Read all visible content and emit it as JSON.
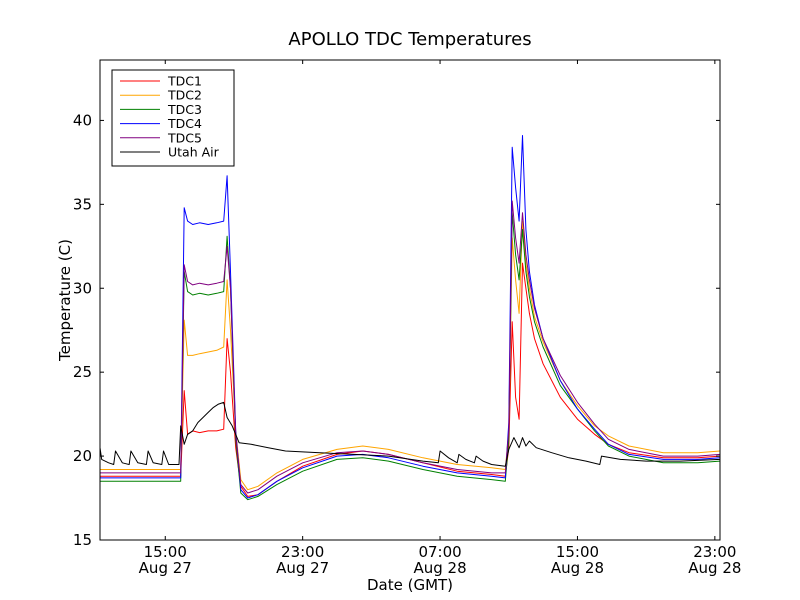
{
  "chart_data": {
    "type": "line",
    "title": "APOLLO TDC Temperatures",
    "xlabel": "Date (GMT)",
    "ylabel": "Temperature (C)",
    "ylim": [
      15,
      43.6
    ],
    "xlim": [
      11.2,
      47.3
    ],
    "x_units": "hours since Aug 27 00:00 GMT",
    "grid": false,
    "legend_position": "top-left",
    "yticks": [
      {
        "value": 15,
        "label": "15"
      },
      {
        "value": 20,
        "label": "20"
      },
      {
        "value": 25,
        "label": "25"
      },
      {
        "value": 30,
        "label": "30"
      },
      {
        "value": 35,
        "label": "35"
      },
      {
        "value": 40,
        "label": "40"
      }
    ],
    "xticks": [
      {
        "value": 15,
        "label1": "15:00",
        "label2": "Aug 27"
      },
      {
        "value": 23,
        "label1": "23:00",
        "label2": "Aug 27"
      },
      {
        "value": 31,
        "label1": "07:00",
        "label2": "Aug 28"
      },
      {
        "value": 39,
        "label1": "15:00",
        "label2": "Aug 28"
      },
      {
        "value": 47,
        "label1": "23:00",
        "label2": "Aug 28"
      }
    ],
    "series": [
      {
        "name": "TDC1",
        "color": "#ff0000",
        "x": [
          11.2,
          15.0,
          15.9,
          16.1,
          16.3,
          16.6,
          17.0,
          17.5,
          18.0,
          18.4,
          18.6,
          18.8,
          19.1,
          19.4,
          19.8,
          20.4,
          21.5,
          23.0,
          25.0,
          26.5,
          28.0,
          30.0,
          32.0,
          34.0,
          34.8,
          35.0,
          35.2,
          35.4,
          35.6,
          35.8,
          36.0,
          36.2,
          36.5,
          37.0,
          38.0,
          39.0,
          40.0,
          40.8,
          42.0,
          44.0,
          46.0,
          47.3
        ],
        "y": [
          18.8,
          18.8,
          18.8,
          23.9,
          21.3,
          21.5,
          21.4,
          21.5,
          21.5,
          21.6,
          27.0,
          25.0,
          20.5,
          18.2,
          17.6,
          17.7,
          18.5,
          19.4,
          20.1,
          20.3,
          20.1,
          19.6,
          19.1,
          18.9,
          18.8,
          20.5,
          28.0,
          23.5,
          22.2,
          31.5,
          30.0,
          28.5,
          27.0,
          25.5,
          23.5,
          22.2,
          21.3,
          20.7,
          20.2,
          19.9,
          19.9,
          20.0
        ]
      },
      {
        "name": "TDC2",
        "color": "#ffa500",
        "x": [
          11.2,
          15.0,
          15.9,
          16.1,
          16.3,
          16.6,
          17.0,
          17.5,
          18.0,
          18.4,
          18.6,
          18.8,
          19.1,
          19.4,
          19.8,
          20.4,
          21.5,
          23.0,
          25.0,
          26.5,
          28.0,
          30.0,
          32.0,
          34.0,
          34.8,
          35.0,
          35.2,
          35.4,
          35.6,
          35.8,
          36.0,
          36.2,
          36.5,
          37.0,
          38.0,
          39.0,
          40.0,
          40.8,
          42.0,
          44.0,
          46.0,
          47.3
        ],
        "y": [
          19.2,
          19.2,
          19.2,
          28.1,
          26.0,
          26.0,
          26.1,
          26.2,
          26.3,
          26.5,
          30.5,
          27.5,
          21.5,
          18.6,
          18.0,
          18.2,
          19.0,
          19.8,
          20.4,
          20.6,
          20.4,
          19.9,
          19.5,
          19.3,
          19.2,
          21.5,
          33.0,
          30.5,
          28.5,
          34.0,
          31.5,
          30.0,
          28.3,
          26.8,
          24.5,
          23.0,
          21.8,
          21.2,
          20.6,
          20.2,
          20.2,
          20.3
        ]
      },
      {
        "name": "TDC3",
        "color": "#008000",
        "x": [
          11.2,
          15.0,
          15.9,
          16.1,
          16.3,
          16.6,
          17.0,
          17.5,
          18.0,
          18.4,
          18.6,
          18.8,
          19.1,
          19.4,
          19.8,
          20.4,
          21.5,
          23.0,
          25.0,
          26.5,
          28.0,
          30.0,
          32.0,
          34.0,
          34.8,
          35.0,
          35.2,
          35.4,
          35.6,
          35.8,
          36.0,
          36.2,
          36.5,
          37.0,
          38.0,
          39.0,
          40.0,
          40.8,
          42.0,
          44.0,
          46.0,
          47.3
        ],
        "y": [
          18.5,
          18.5,
          18.5,
          31.0,
          29.8,
          29.6,
          29.7,
          29.6,
          29.7,
          29.8,
          33.1,
          30.0,
          21.0,
          17.8,
          17.4,
          17.6,
          18.3,
          19.1,
          19.8,
          19.9,
          19.7,
          19.2,
          18.8,
          18.6,
          18.5,
          21.0,
          34.5,
          32.0,
          30.5,
          33.5,
          31.0,
          29.5,
          28.0,
          26.5,
          24.2,
          22.8,
          21.5,
          20.6,
          20.0,
          19.6,
          19.6,
          19.7
        ]
      },
      {
        "name": "TDC4",
        "color": "#0000ff",
        "x": [
          11.2,
          15.0,
          15.9,
          16.1,
          16.3,
          16.6,
          17.0,
          17.5,
          18.0,
          18.4,
          18.6,
          18.8,
          19.1,
          19.4,
          19.8,
          20.4,
          21.5,
          23.0,
          25.0,
          26.5,
          28.0,
          30.0,
          32.0,
          34.0,
          34.8,
          35.0,
          35.2,
          35.4,
          35.6,
          35.8,
          36.0,
          36.2,
          36.5,
          37.0,
          38.0,
          39.0,
          40.0,
          40.8,
          42.0,
          44.0,
          46.0,
          47.3
        ],
        "y": [
          18.7,
          18.7,
          18.7,
          34.8,
          34.0,
          33.8,
          33.9,
          33.8,
          33.9,
          34.0,
          36.7,
          31.0,
          21.5,
          18.0,
          17.5,
          17.7,
          18.5,
          19.3,
          20.0,
          20.1,
          19.9,
          19.4,
          19.0,
          18.8,
          18.7,
          22.0,
          38.4,
          36.0,
          34.0,
          39.1,
          33.5,
          31.0,
          29.0,
          27.0,
          24.5,
          22.8,
          21.6,
          20.7,
          20.1,
          19.8,
          19.8,
          19.9
        ]
      },
      {
        "name": "TDC5",
        "color": "#800080",
        "x": [
          11.2,
          15.0,
          15.9,
          16.1,
          16.3,
          16.6,
          17.0,
          17.5,
          18.0,
          18.4,
          18.6,
          18.8,
          19.1,
          19.4,
          19.8,
          20.4,
          21.5,
          23.0,
          25.0,
          26.5,
          28.0,
          30.0,
          32.0,
          34.0,
          34.8,
          35.0,
          35.2,
          35.4,
          35.6,
          35.8,
          36.0,
          36.2,
          36.5,
          37.0,
          38.0,
          39.0,
          40.0,
          40.8,
          42.0,
          44.0,
          46.0,
          47.3
        ],
        "y": [
          19.0,
          19.0,
          19.0,
          31.4,
          30.4,
          30.2,
          30.3,
          30.2,
          30.3,
          30.4,
          32.5,
          30.0,
          21.3,
          18.3,
          17.8,
          18.0,
          18.8,
          19.6,
          20.2,
          20.3,
          20.1,
          19.6,
          19.2,
          19.0,
          19.0,
          21.5,
          35.2,
          33.0,
          31.5,
          34.5,
          32.0,
          30.5,
          28.8,
          27.0,
          24.8,
          23.2,
          21.9,
          21.0,
          20.4,
          20.0,
          20.0,
          20.1
        ]
      },
      {
        "name": "Utah Air",
        "color": "#000000",
        "x": [
          11.2,
          11.3,
          11.7,
          12.0,
          12.1,
          12.5,
          12.9,
          13.0,
          13.4,
          13.9,
          14.0,
          14.3,
          14.8,
          14.9,
          15.2,
          15.8,
          15.9,
          16.1,
          16.3,
          16.6,
          16.9,
          17.2,
          17.5,
          17.8,
          18.1,
          18.4,
          18.6,
          18.9,
          19.3,
          20.0,
          21.0,
          22.0,
          24.0,
          26.0,
          28.0,
          30.0,
          30.9,
          31.0,
          31.5,
          32.0,
          32.1,
          32.5,
          33.0,
          33.1,
          33.5,
          34.0,
          34.8,
          35.0,
          35.3,
          35.6,
          35.8,
          36.0,
          36.2,
          36.6,
          37.5,
          38.5,
          39.5,
          40.3,
          40.4,
          41.5,
          43.0,
          45.0,
          47.3
        ],
        "y": [
          20.5,
          19.8,
          19.6,
          19.5,
          20.3,
          19.6,
          19.5,
          20.3,
          19.6,
          19.5,
          20.3,
          19.6,
          19.5,
          20.3,
          19.5,
          19.5,
          21.8,
          20.7,
          21.3,
          21.5,
          22.0,
          22.3,
          22.6,
          22.9,
          23.1,
          23.2,
          22.3,
          21.8,
          20.8,
          20.7,
          20.5,
          20.3,
          20.2,
          20.1,
          20.0,
          19.7,
          19.6,
          20.3,
          19.9,
          19.6,
          20.1,
          19.8,
          19.6,
          20.0,
          19.7,
          19.5,
          19.4,
          20.4,
          21.1,
          20.5,
          21.1,
          20.6,
          20.9,
          20.5,
          20.2,
          19.9,
          19.7,
          19.5,
          20.0,
          19.8,
          19.7,
          19.7,
          19.8
        ]
      }
    ]
  }
}
